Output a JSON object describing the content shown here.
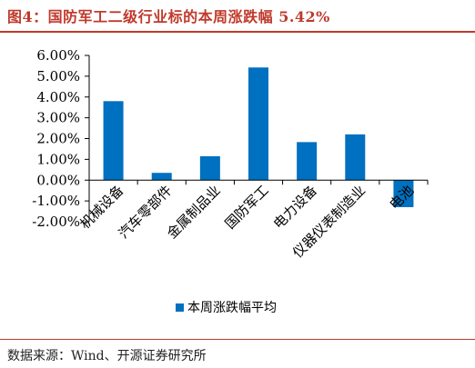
{
  "title": "图4：国防军工二级行业标的本周涨跌幅 5.42%",
  "source": "数据来源：Wind、开源证券研究所",
  "colors": {
    "bar": "#0070c0",
    "accent": "#c0392b"
  },
  "chart_data": {
    "type": "bar",
    "title": "",
    "xlabel": "",
    "ylabel": "",
    "categories": [
      "机械设备",
      "汽车零部件",
      "金属制品业",
      "国防军工",
      "电力设备",
      "仪器仪表制造业",
      "电池"
    ],
    "series": [
      {
        "name": "本周涨跌幅平均",
        "values": [
          3.8,
          0.35,
          1.15,
          5.42,
          1.83,
          2.2,
          -1.3
        ]
      }
    ],
    "ylim": [
      -2,
      6
    ],
    "yticks": [
      "-2.00%",
      "-1.00%",
      "0.00%",
      "1.00%",
      "2.00%",
      "3.00%",
      "4.00%",
      "5.00%",
      "6.00%"
    ],
    "grid": false,
    "legend": "bottom"
  }
}
